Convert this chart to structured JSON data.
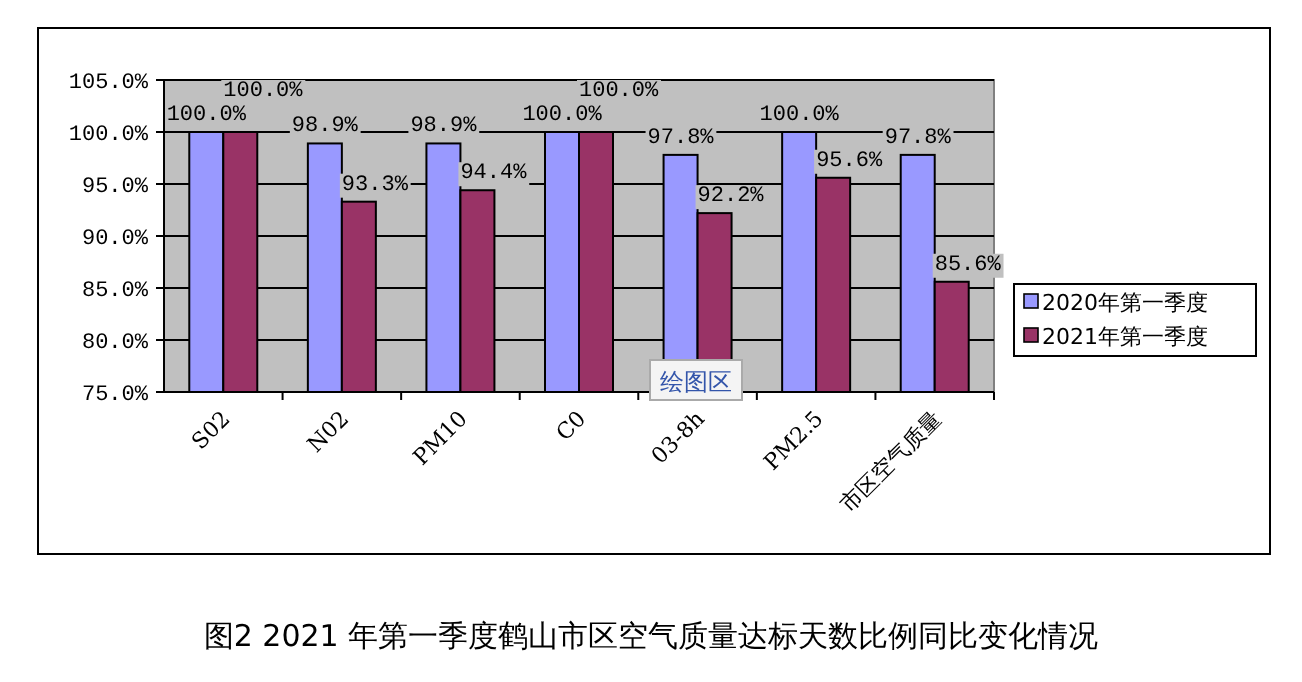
{
  "chart_data": {
    "type": "bar",
    "title": "图2  2021 年第一季度鹤山市区空气质量达标天数比例同比变化情况",
    "categories": [
      "S02",
      "N02",
      "PM10",
      "C0",
      "03-8h",
      "PM2.5",
      "市区空气质量"
    ],
    "series": [
      {
        "name": "2020年第一季度",
        "color": "#9999ff",
        "values": [
          100.0,
          98.9,
          98.9,
          100.0,
          97.8,
          100.0,
          97.8
        ],
        "value_labels": [
          "100.0%",
          "98.9%",
          "98.9%",
          "100.0%",
          "97.8%",
          "100.0%",
          "97.8%"
        ]
      },
      {
        "name": "2021年第一季度",
        "color": "#993366",
        "values": [
          100.0,
          93.3,
          94.4,
          100.0,
          92.2,
          95.6,
          85.6
        ],
        "value_labels": [
          "100.0%",
          "93.3%",
          "94.4%",
          "100.0%",
          "92.2%",
          "95.6%",
          "85.6%"
        ]
      }
    ],
    "ylim": [
      75,
      105
    ],
    "yticks": [
      {
        "value": 75,
        "label": "75.0%"
      },
      {
        "value": 80,
        "label": "80.0%"
      },
      {
        "value": 85,
        "label": "85.0%"
      },
      {
        "value": 90,
        "label": "90.0%"
      },
      {
        "value": 95,
        "label": "95.0%"
      },
      {
        "value": 100,
        "label": "100.0%"
      },
      {
        "value": 105,
        "label": "105.0%"
      }
    ],
    "grid": "y",
    "legend": "right",
    "annotations": [
      "绘图区"
    ]
  }
}
